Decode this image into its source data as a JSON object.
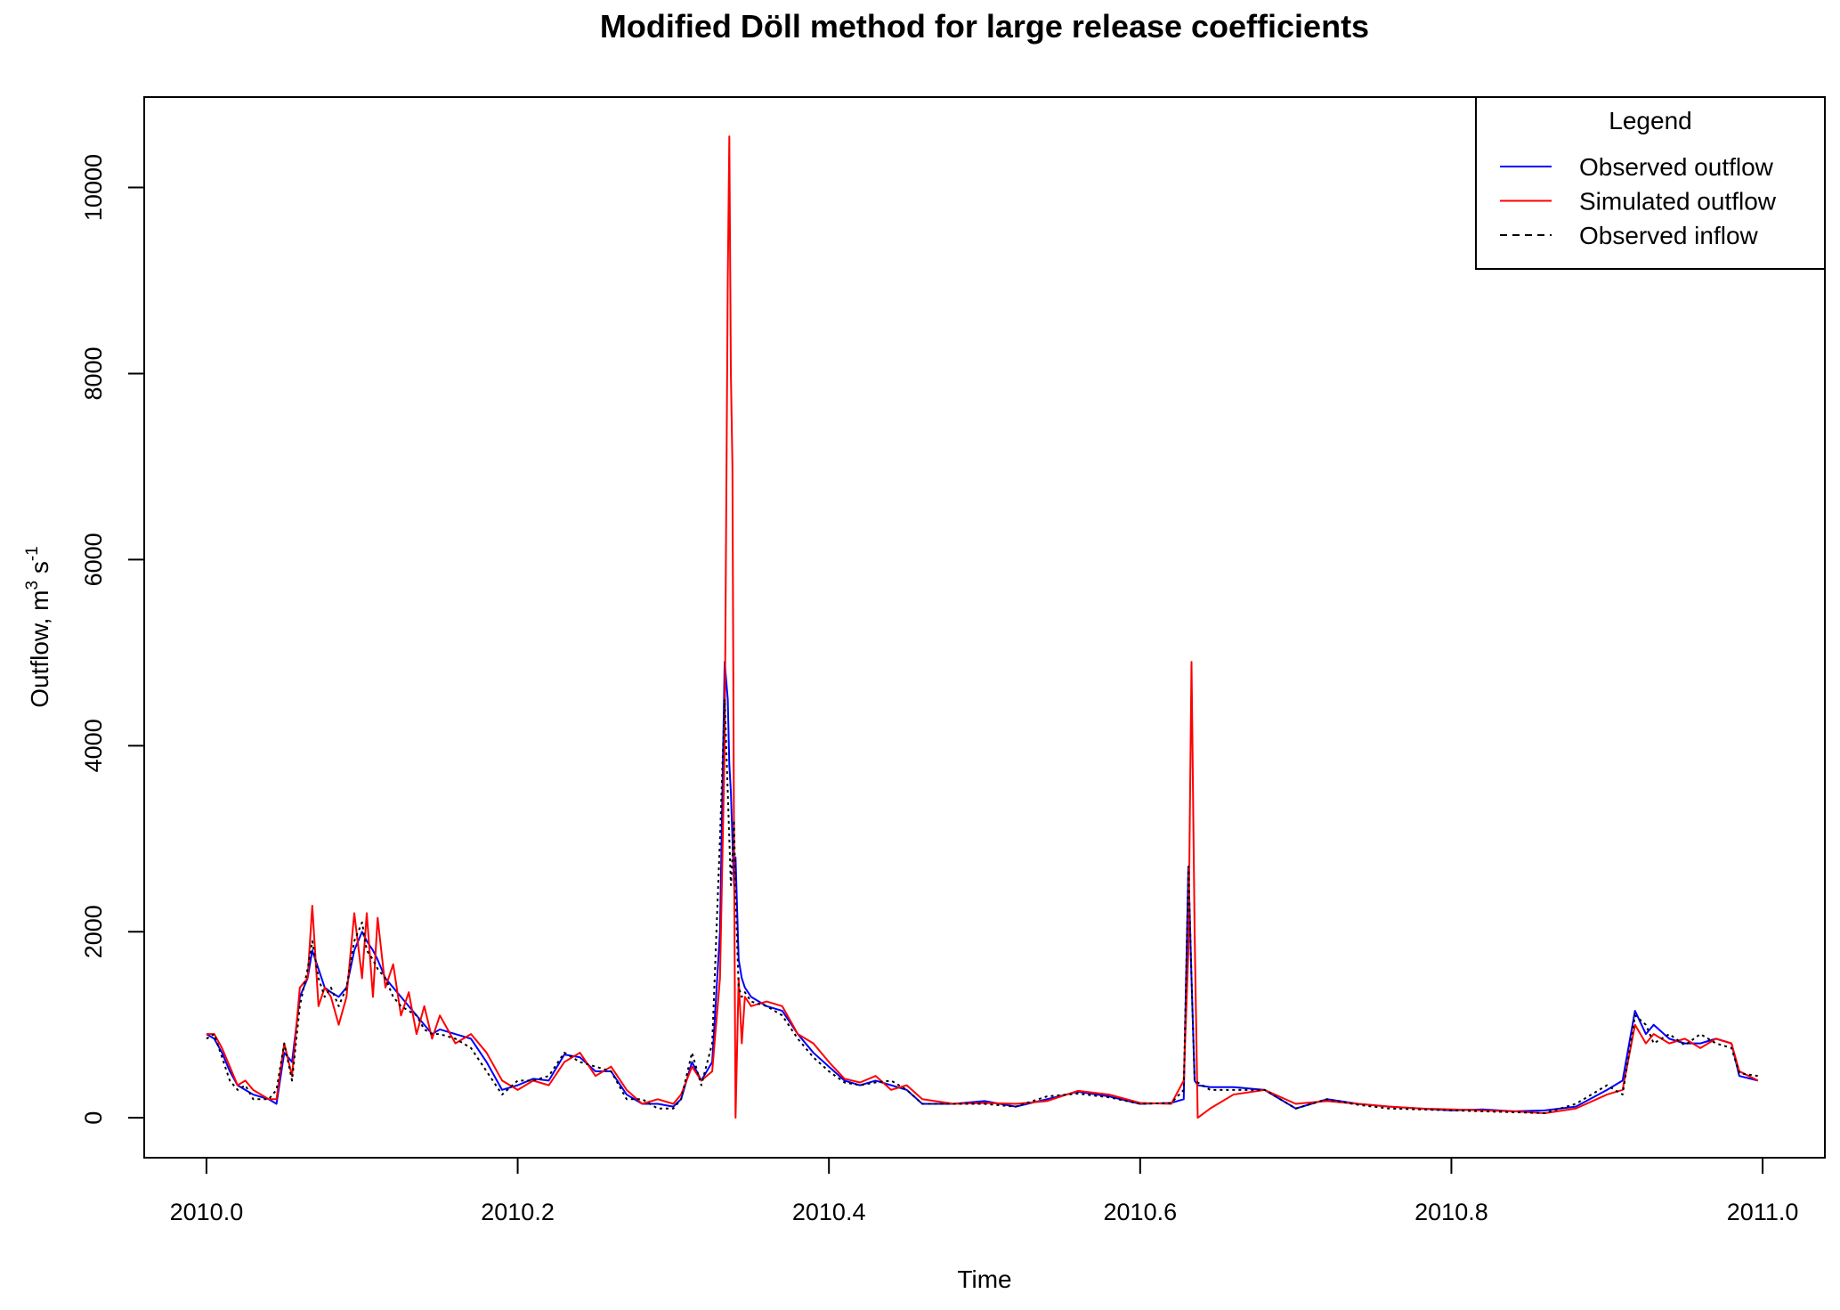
{
  "chart_data": {
    "type": "line",
    "title": "Modified Döll method for large release coefficients",
    "x_label": "Time",
    "y_label_parts": [
      "Outflow,  m",
      "3",
      " s",
      "-1"
    ],
    "legend_title": "Legend",
    "legend_position": "top-right",
    "xlim": [
      2009.96,
      2011.04
    ],
    "ylim": [
      -429,
      10972
    ],
    "xticks": [
      {
        "value": 2010.0,
        "label": "2010.0"
      },
      {
        "value": 2010.2,
        "label": "2010.2"
      },
      {
        "value": 2010.4,
        "label": "2010.4"
      },
      {
        "value": 2010.6,
        "label": "2010.6"
      },
      {
        "value": 2010.8,
        "label": "2010.8"
      },
      {
        "value": 2011.0,
        "label": "2011.0"
      }
    ],
    "yticks": [
      0,
      2000,
      4000,
      6000,
      8000,
      10000
    ],
    "x": [
      2010.0,
      2010.005,
      2010.01,
      2010.015,
      2010.02,
      2010.025,
      2010.03,
      2010.04,
      2010.045,
      2010.05,
      2010.055,
      2010.06,
      2010.065,
      2010.068,
      2010.072,
      2010.076,
      2010.08,
      2010.085,
      2010.09,
      2010.095,
      2010.1,
      2010.103,
      2010.107,
      2010.11,
      2010.115,
      2010.12,
      2010.125,
      2010.13,
      2010.135,
      2010.14,
      2010.145,
      2010.15,
      2010.16,
      2010.17,
      2010.18,
      2010.19,
      2010.2,
      2010.21,
      2010.22,
      2010.23,
      2010.24,
      2010.25,
      2010.26,
      2010.27,
      2010.28,
      2010.29,
      2010.3,
      2010.305,
      2010.312,
      2010.318,
      2010.325,
      2010.33,
      2010.333,
      2010.335,
      2010.336,
      2010.337,
      2010.338,
      2010.339,
      2010.34,
      2010.342,
      2010.344,
      2010.346,
      2010.35,
      2010.36,
      2010.37,
      2010.38,
      2010.39,
      2010.4,
      2010.41,
      2010.42,
      2010.43,
      2010.44,
      2010.45,
      2010.46,
      2010.48,
      2010.5,
      2010.52,
      2010.54,
      2010.56,
      2010.58,
      2010.6,
      2010.62,
      2010.628,
      2010.631,
      2010.633,
      2010.635,
      2010.637,
      2010.645,
      2010.66,
      2010.68,
      2010.7,
      2010.72,
      2010.74,
      2010.76,
      2010.78,
      2010.8,
      2010.82,
      2010.84,
      2010.86,
      2010.88,
      2010.9,
      2010.91,
      2010.918,
      2010.925,
      2010.93,
      2010.94,
      2010.95,
      2010.96,
      2010.97,
      2010.98,
      2010.985,
      2010.997
    ],
    "series": [
      {
        "name": "Observed outflow",
        "color": "#0000ff",
        "dash": false,
        "values": [
          900,
          850,
          700,
          500,
          350,
          300,
          250,
          200,
          150,
          700,
          600,
          1300,
          1500,
          1800,
          1600,
          1400,
          1350,
          1300,
          1400,
          1800,
          2000,
          1900,
          1800,
          1700,
          1500,
          1400,
          1300,
          1200,
          1100,
          1000,
          900,
          950,
          900,
          850,
          600,
          300,
          350,
          420,
          400,
          680,
          650,
          500,
          500,
          250,
          150,
          150,
          120,
          200,
          600,
          400,
          600,
          2000,
          4900,
          4500,
          3800,
          3500,
          3000,
          2500,
          2800,
          1700,
          1500,
          1400,
          1300,
          1200,
          1150,
          900,
          700,
          550,
          400,
          350,
          400,
          350,
          300,
          150,
          150,
          180,
          120,
          200,
          280,
          230,
          150,
          160,
          200,
          2700,
          1500,
          400,
          350,
          330,
          330,
          300,
          100,
          200,
          150,
          120,
          100,
          80,
          90,
          70,
          80,
          120,
          300,
          400,
          1150,
          900,
          1000,
          850,
          800,
          800,
          850,
          800,
          450,
          400
        ]
      },
      {
        "name": "Simulated outflow",
        "color": "#ff0000",
        "dash": false,
        "values": [
          900,
          900,
          750,
          550,
          350,
          400,
          300,
          200,
          200,
          800,
          450,
          1400,
          1500,
          2280,
          1200,
          1400,
          1300,
          1000,
          1300,
          2200,
          1500,
          2200,
          1300,
          2150,
          1400,
          1650,
          1100,
          1350,
          900,
          1200,
          850,
          1100,
          800,
          900,
          700,
          400,
          300,
          400,
          350,
          600,
          700,
          450,
          550,
          300,
          150,
          200,
          150,
          250,
          550,
          400,
          500,
          1500,
          4000,
          9000,
          10550,
          8000,
          7000,
          3000,
          0,
          1500,
          800,
          1300,
          1200,
          1250,
          1200,
          900,
          800,
          600,
          420,
          380,
          450,
          300,
          350,
          200,
          150,
          160,
          150,
          180,
          290,
          250,
          160,
          150,
          400,
          1800,
          4900,
          2000,
          0,
          100,
          250,
          300,
          150,
          180,
          150,
          120,
          100,
          90,
          80,
          70,
          50,
          100,
          250,
          300,
          1000,
          800,
          900,
          800,
          850,
          750,
          850,
          800,
          500,
          400
        ]
      },
      {
        "name": "Observed inflow",
        "color": "#000000",
        "dash": true,
        "values": [
          850,
          900,
          650,
          400,
          300,
          350,
          200,
          200,
          300,
          800,
          400,
          1200,
          1600,
          1900,
          1500,
          1300,
          1400,
          1200,
          1400,
          1900,
          2100,
          1800,
          1700,
          1600,
          1500,
          1300,
          1200,
          1150,
          1100,
          950,
          900,
          900,
          850,
          750,
          500,
          250,
          400,
          400,
          450,
          700,
          600,
          550,
          500,
          200,
          200,
          100,
          100,
          200,
          700,
          350,
          800,
          3000,
          4500,
          3500,
          3000,
          2500,
          2800,
          3200,
          2400,
          1400,
          1300,
          1350,
          1250,
          1200,
          1100,
          850,
          650,
          500,
          380,
          350,
          380,
          400,
          300,
          150,
          150,
          150,
          120,
          230,
          260,
          220,
          150,
          160,
          300,
          2700,
          1500,
          400,
          380,
          300,
          300,
          300,
          100,
          200,
          140,
          100,
          90,
          80,
          70,
          60,
          50,
          150,
          350,
          250,
          1100,
          1000,
          800,
          900,
          780,
          900,
          800,
          750,
          480,
          450
        ]
      }
    ]
  }
}
